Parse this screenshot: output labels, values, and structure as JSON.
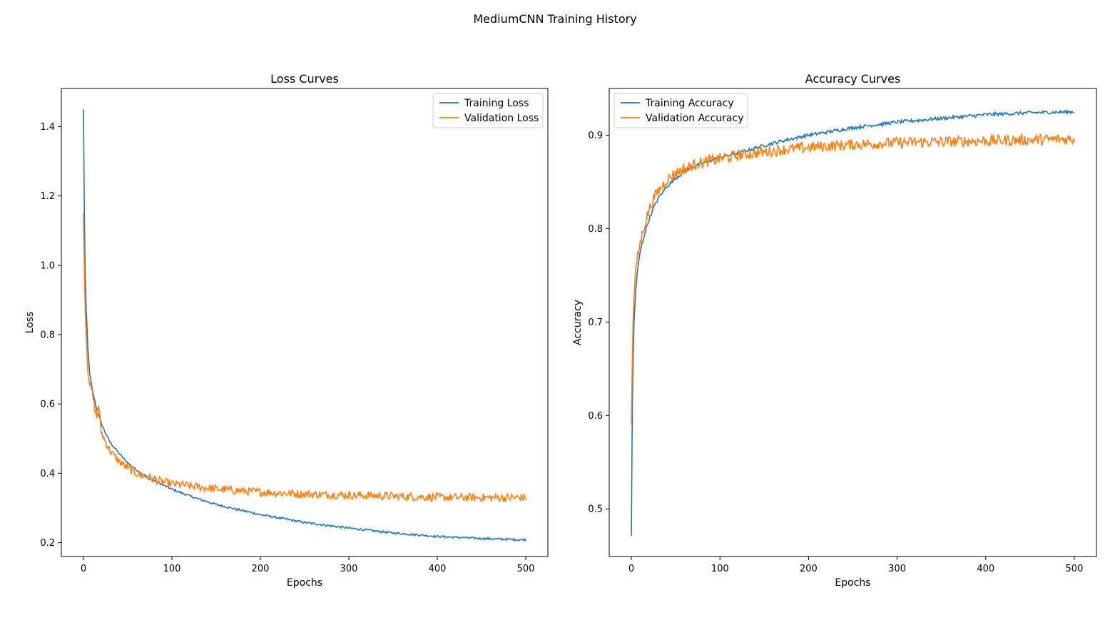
{
  "suptitle": "MediumCNN Training History",
  "colors": {
    "training": "#1f77b4",
    "validation": "#ff7f0e"
  },
  "chart_data": [
    {
      "type": "line",
      "title": "Loss Curves",
      "xlabel": "Epochs",
      "ylabel": "Loss",
      "xlim": [
        -25,
        525
      ],
      "ylim": [
        0.16,
        1.51
      ],
      "xticks": [
        0,
        100,
        200,
        300,
        400,
        500
      ],
      "yticks": [
        0.2,
        0.4,
        0.6,
        0.8,
        1.0,
        1.2,
        1.4
      ],
      "xtick_labels": [
        "0",
        "100",
        "200",
        "300",
        "400",
        "500"
      ],
      "ytick_labels": [
        "0.2",
        "0.4",
        "0.6",
        "0.8",
        "1.0",
        "1.2",
        "1.4"
      ],
      "legend_position": "upper right",
      "grid": false,
      "series": [
        {
          "name": "Training Loss",
          "color": "#1f77b4",
          "x": [
            0,
            1,
            2,
            3,
            5,
            7,
            10,
            15,
            20,
            25,
            30,
            40,
            50,
            60,
            70,
            80,
            90,
            100,
            125,
            150,
            175,
            200,
            250,
            300,
            350,
            400,
            450,
            500
          ],
          "y": [
            1.45,
            1.15,
            0.98,
            0.88,
            0.76,
            0.69,
            0.64,
            0.585,
            0.545,
            0.515,
            0.49,
            0.458,
            0.43,
            0.41,
            0.393,
            0.379,
            0.366,
            0.354,
            0.33,
            0.31,
            0.295,
            0.281,
            0.258,
            0.242,
            0.228,
            0.218,
            0.212,
            0.208
          ]
        },
        {
          "name": "Validation Loss",
          "color": "#ff7f0e",
          "x": [
            0,
            1,
            2,
            3,
            5,
            7,
            10,
            12,
            15,
            17,
            20,
            25,
            30,
            40,
            50,
            60,
            70,
            80,
            90,
            100,
            125,
            150,
            175,
            200,
            250,
            300,
            350,
            400,
            450,
            500
          ],
          "y": [
            1.15,
            0.98,
            0.88,
            0.8,
            0.7,
            0.66,
            0.63,
            0.6,
            0.56,
            0.6,
            0.52,
            0.49,
            0.465,
            0.435,
            0.415,
            0.4,
            0.39,
            0.383,
            0.375,
            0.37,
            0.362,
            0.355,
            0.35,
            0.346,
            0.34,
            0.337,
            0.334,
            0.331,
            0.33,
            0.33
          ]
        }
      ]
    },
    {
      "type": "line",
      "title": "Accuracy Curves",
      "xlabel": "Epochs",
      "ylabel": "Accuracy",
      "xlim": [
        -25,
        525
      ],
      "ylim": [
        0.449,
        0.95
      ],
      "xticks": [
        0,
        100,
        200,
        300,
        400,
        500
      ],
      "yticks": [
        0.5,
        0.6,
        0.7,
        0.8,
        0.9
      ],
      "xtick_labels": [
        "0",
        "100",
        "200",
        "300",
        "400",
        "500"
      ],
      "ytick_labels": [
        "0.5",
        "0.6",
        "0.7",
        "0.8",
        "0.9"
      ],
      "legend_position": "upper left",
      "grid": false,
      "series": [
        {
          "name": "Training Accuracy",
          "color": "#1f77b4",
          "x": [
            0,
            1,
            2,
            3,
            5,
            7,
            10,
            15,
            20,
            25,
            30,
            40,
            50,
            60,
            70,
            80,
            90,
            100,
            125,
            150,
            175,
            200,
            250,
            300,
            350,
            400,
            450,
            500
          ],
          "y": [
            0.471,
            0.6,
            0.66,
            0.7,
            0.735,
            0.755,
            0.775,
            0.795,
            0.81,
            0.822,
            0.832,
            0.845,
            0.854,
            0.861,
            0.866,
            0.87,
            0.873,
            0.876,
            0.882,
            0.889,
            0.895,
            0.9,
            0.908,
            0.914,
            0.918,
            0.922,
            0.924,
            0.925
          ]
        },
        {
          "name": "Validation Accuracy",
          "color": "#ff7f0e",
          "x": [
            0,
            1,
            2,
            3,
            5,
            7,
            10,
            15,
            20,
            25,
            30,
            40,
            50,
            60,
            70,
            80,
            90,
            100,
            125,
            150,
            175,
            200,
            250,
            300,
            350,
            400,
            450,
            500
          ],
          "y": [
            0.59,
            0.66,
            0.7,
            0.73,
            0.755,
            0.77,
            0.785,
            0.805,
            0.82,
            0.832,
            0.84,
            0.852,
            0.86,
            0.864,
            0.868,
            0.871,
            0.873,
            0.875,
            0.879,
            0.882,
            0.885,
            0.887,
            0.89,
            0.892,
            0.893,
            0.894,
            0.895,
            0.896
          ]
        }
      ]
    }
  ]
}
